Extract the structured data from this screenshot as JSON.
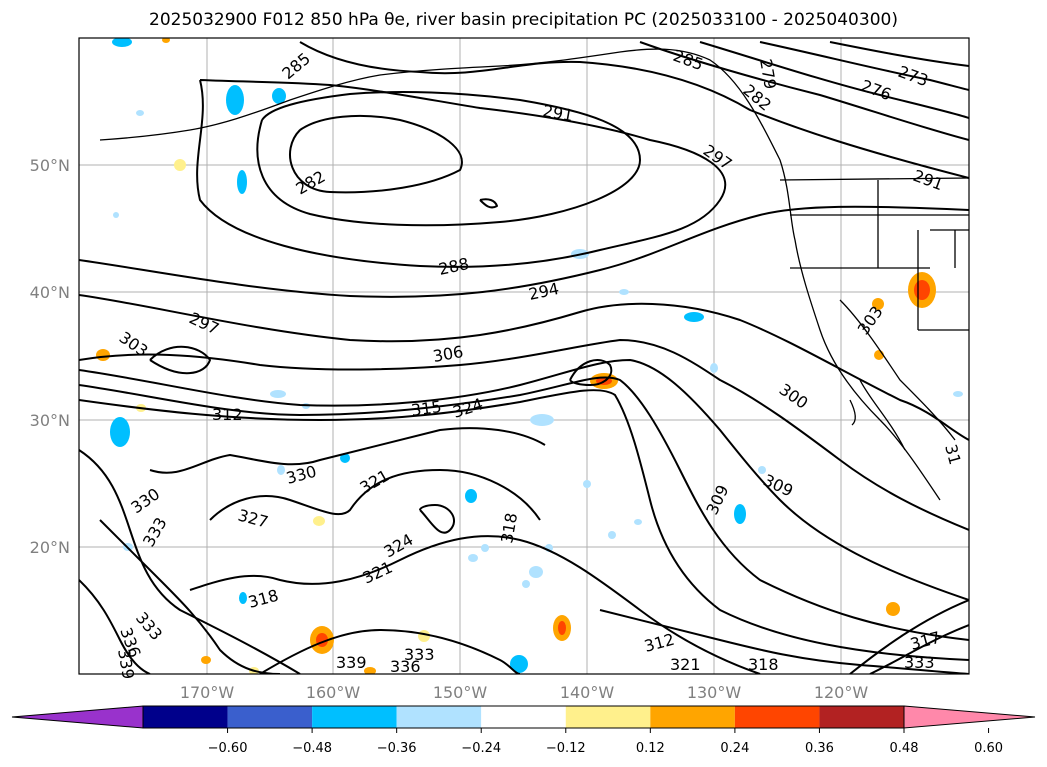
{
  "title": "2025032900 F012 850 hPa θe, river basin precipitation PC (2025033100 - 2025040300)",
  "lon_labels": [
    "170°W",
    "160°W",
    "150°W",
    "140°W",
    "130°W",
    "120°W"
  ],
  "lat_labels": [
    "50°N",
    "40°N",
    "30°N",
    "20°N"
  ],
  "contour_labels": [
    {
      "text": "285"
    },
    {
      "text": "282"
    },
    {
      "text": "291"
    },
    {
      "text": "285"
    },
    {
      "text": "279"
    },
    {
      "text": "276"
    },
    {
      "text": "273"
    },
    {
      "text": "282"
    },
    {
      "text": "297"
    },
    {
      "text": "291"
    },
    {
      "text": "288"
    },
    {
      "text": "294"
    },
    {
      "text": "297"
    },
    {
      "text": "303"
    },
    {
      "text": "306"
    },
    {
      "text": "312"
    },
    {
      "text": "315"
    },
    {
      "text": "324"
    },
    {
      "text": "300"
    },
    {
      "text": "303"
    },
    {
      "text": "330"
    },
    {
      "text": "321"
    },
    {
      "text": "330"
    },
    {
      "text": "327"
    },
    {
      "text": "333"
    },
    {
      "text": "318"
    },
    {
      "text": "324"
    },
    {
      "text": "309"
    },
    {
      "text": "309"
    },
    {
      "text": "321"
    },
    {
      "text": "318"
    },
    {
      "text": "333"
    },
    {
      "text": "336"
    },
    {
      "text": "339"
    },
    {
      "text": "339"
    },
    {
      "text": "336"
    },
    {
      "text": "333"
    },
    {
      "text": "312"
    },
    {
      "text": "321"
    },
    {
      "text": "318"
    },
    {
      "text": "317"
    },
    {
      "text": "333"
    },
    {
      "text": "31"
    }
  ],
  "colorbar": {
    "colors": [
      "#9932cc",
      "#00008b",
      "#3a5fcd",
      "#00bfff",
      "#b0e2ff",
      "#ffffff",
      "#fff08c",
      "#ffa500",
      "#ff4500",
      "#b22222",
      "#ff88aa"
    ],
    "tick_labels": [
      "−0.60",
      "−0.48",
      "−0.36",
      "−0.24",
      "−0.12",
      "0.12",
      "0.24",
      "0.36",
      "0.48",
      "0.60"
    ]
  }
}
